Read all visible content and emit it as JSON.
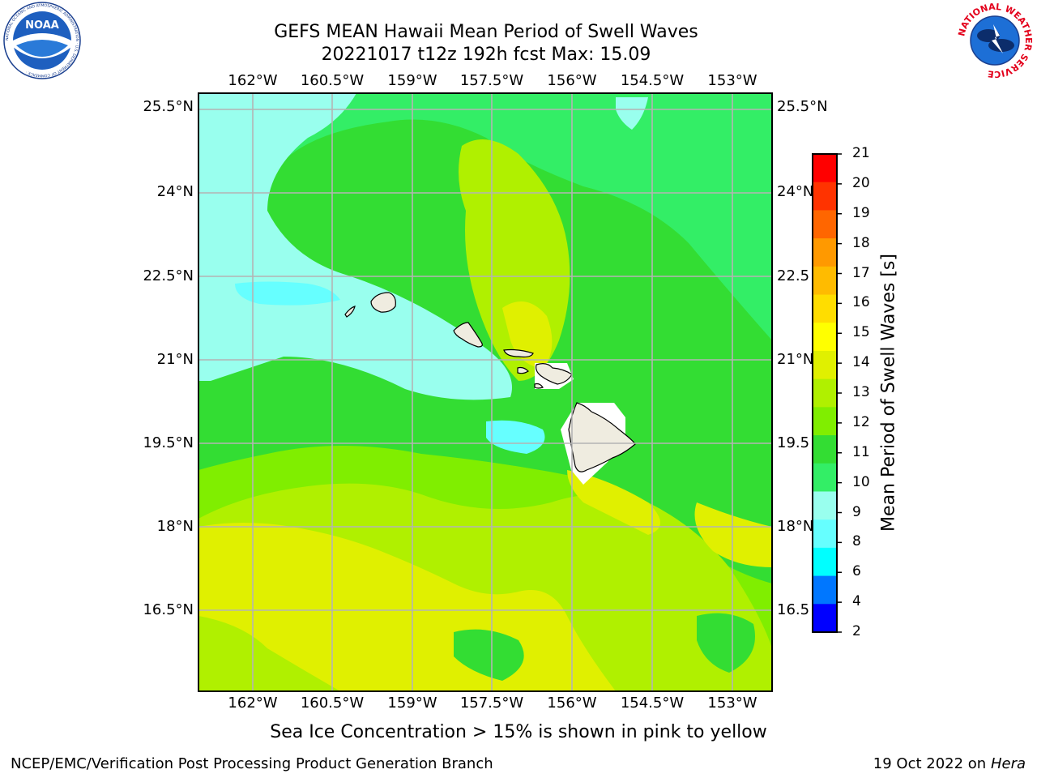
{
  "title": {
    "line1": "GEFS MEAN Hawaii Mean Period of Swell Waves",
    "line2": "20221017 t12z 192h fcst   Max: 15.09"
  },
  "map": {
    "lon_labels": [
      "162°W",
      "160.5°W",
      "159°W",
      "157.5°W",
      "156°W",
      "154.5°W",
      "153°W"
    ],
    "lat_labels_left": [
      "25.5°N",
      "24°N",
      "22.5°N",
      "21°N",
      "19.5°N",
      "18°N",
      "16.5°N"
    ],
    "lat_labels_right": [
      "25.5°N",
      "24°N",
      "22.5",
      "21°N",
      "19.5",
      "18°N",
      "16.5"
    ],
    "islands": [
      "Kauai",
      "Niihau",
      "Oahu",
      "Molokai",
      "Maui",
      "Kahoolawe",
      "Hawaii"
    ]
  },
  "colorbar": {
    "label": "Mean Period of Swell Waves [s]",
    "ticks": [
      "21",
      "20",
      "19",
      "18",
      "17",
      "16",
      "15",
      "14",
      "13",
      "12",
      "11",
      "10",
      "9",
      "8",
      "6",
      "4",
      "2"
    ],
    "colors": [
      "#ff0000",
      "#ff3300",
      "#ff6600",
      "#ff9900",
      "#ffbb00",
      "#ffdd00",
      "#ffff00",
      "#e0f000",
      "#b0f000",
      "#80ee00",
      "#33dd33",
      "#33ee66",
      "#99ffee",
      "#66ffff",
      "#00ffff",
      "#0077ff",
      "#0000ff"
    ]
  },
  "note": "Sea Ice Concentration > 15% is shown in pink to yellow",
  "footer": {
    "left": "NCEP/EMC/Verification Post Processing Product Generation Branch",
    "right_date": "19 Oct 2022 on ",
    "right_machine": "Hera"
  },
  "logos": {
    "noaa": "NOAA",
    "noaa_ring": "NATIONAL OCEANIC AND ATMOSPHERIC ADMINISTRATION · U.S. DEPARTMENT OF COMMERCE ·",
    "nws_ring": "NATIONAL WEATHER SERVICE"
  }
}
